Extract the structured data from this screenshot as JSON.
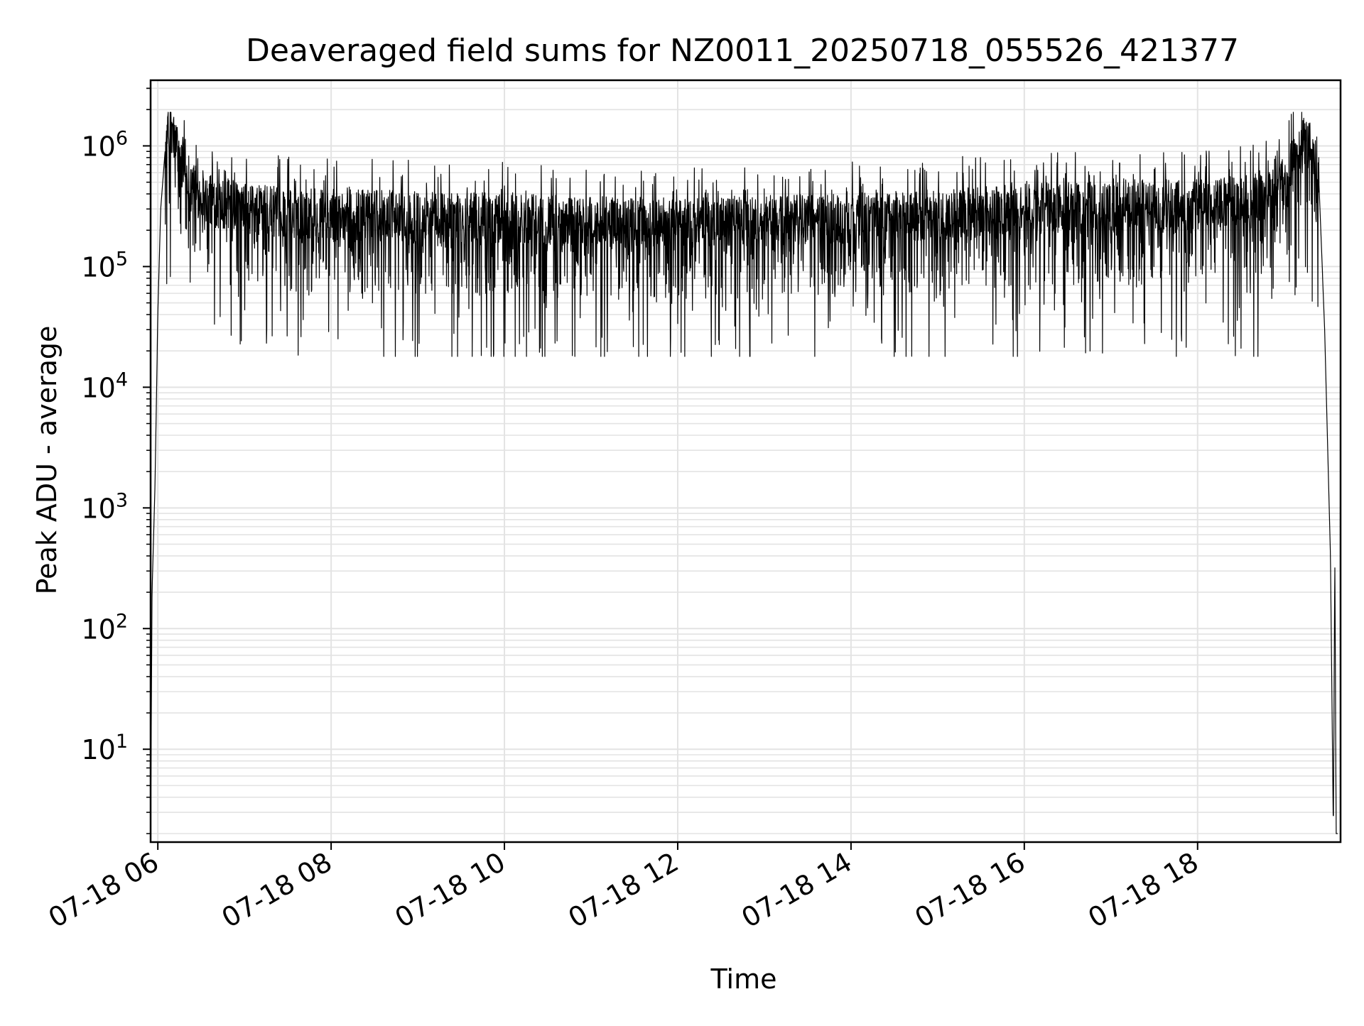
{
  "chart_data": {
    "type": "line",
    "title": "Deaveraged field sums for NZ0011_20250718_055526_421377",
    "xlabel": "Time",
    "ylabel": "Peak ADU - average",
    "yscale": "log",
    "ylim": [
      1.7,
      3500000
    ],
    "xlim": [
      "2025-07-18 05:55",
      "2025-07-18 19:39"
    ],
    "grid": true,
    "x_ticks": [
      "07-18 06",
      "07-18 08",
      "07-18 10",
      "07-18 12",
      "07-18 14",
      "07-18 16",
      "07-18 18"
    ],
    "y_ticks": [
      {
        "base": "10",
        "exp": "1",
        "value": 10
      },
      {
        "base": "10",
        "exp": "2",
        "value": 100
      },
      {
        "base": "10",
        "exp": "3",
        "value": 1000
      },
      {
        "base": "10",
        "exp": "4",
        "value": 10000
      },
      {
        "base": "10",
        "exp": "5",
        "value": 100000
      },
      {
        "base": "10",
        "exp": "6",
        "value": 1000000
      }
    ],
    "series": [
      {
        "color": "#000000",
        "x": [
          "2025-07-18 05:55",
          "2025-07-18 05:56",
          "2025-07-18 05:58",
          "2025-07-18 06:00",
          "2025-07-18 06:02",
          "2025-07-18 06:05",
          "2025-07-18 06:08",
          "2025-07-18 06:12",
          "2025-07-18 06:15",
          "2025-07-18 06:20",
          "2025-07-18 06:25",
          "2025-07-18 06:30",
          "2025-07-18 06:40",
          "2025-07-18 06:50",
          "2025-07-18 07:00",
          "2025-07-18 07:15",
          "2025-07-18 07:30",
          "2025-07-18 08:00",
          "2025-07-18 09:00",
          "2025-07-18 10:00",
          "2025-07-18 11:00",
          "2025-07-18 12:00",
          "2025-07-18 13:00",
          "2025-07-18 14:00",
          "2025-07-18 15:00",
          "2025-07-18 16:00",
          "2025-07-18 17:00",
          "2025-07-18 18:00",
          "2025-07-18 18:30",
          "2025-07-18 18:50",
          "2025-07-18 19:00",
          "2025-07-18 19:10",
          "2025-07-18 19:15",
          "2025-07-18 19:20",
          "2025-07-18 19:24",
          "2025-07-18 19:28",
          "2025-07-18 19:32",
          "2025-07-18 19:34",
          "2025-07-18 19:35",
          "2025-07-18 19:36",
          "2025-07-18 19:37"
        ],
        "values": [
          2,
          200,
          1500,
          40000,
          300000,
          900000,
          1300000,
          1100000,
          800000,
          600000,
          450000,
          380000,
          340000,
          320000,
          300000,
          290000,
          280000,
          270000,
          260000,
          250000,
          240000,
          230000,
          240000,
          250000,
          270000,
          300000,
          320000,
          330000,
          350000,
          380000,
          500000,
          900000,
          1200000,
          1000000,
          500000,
          30000,
          400,
          2,
          400,
          2,
          2
        ],
        "noise": {
          "median": 300000,
          "min": 18000,
          "max": 1900000
        }
      }
    ]
  }
}
